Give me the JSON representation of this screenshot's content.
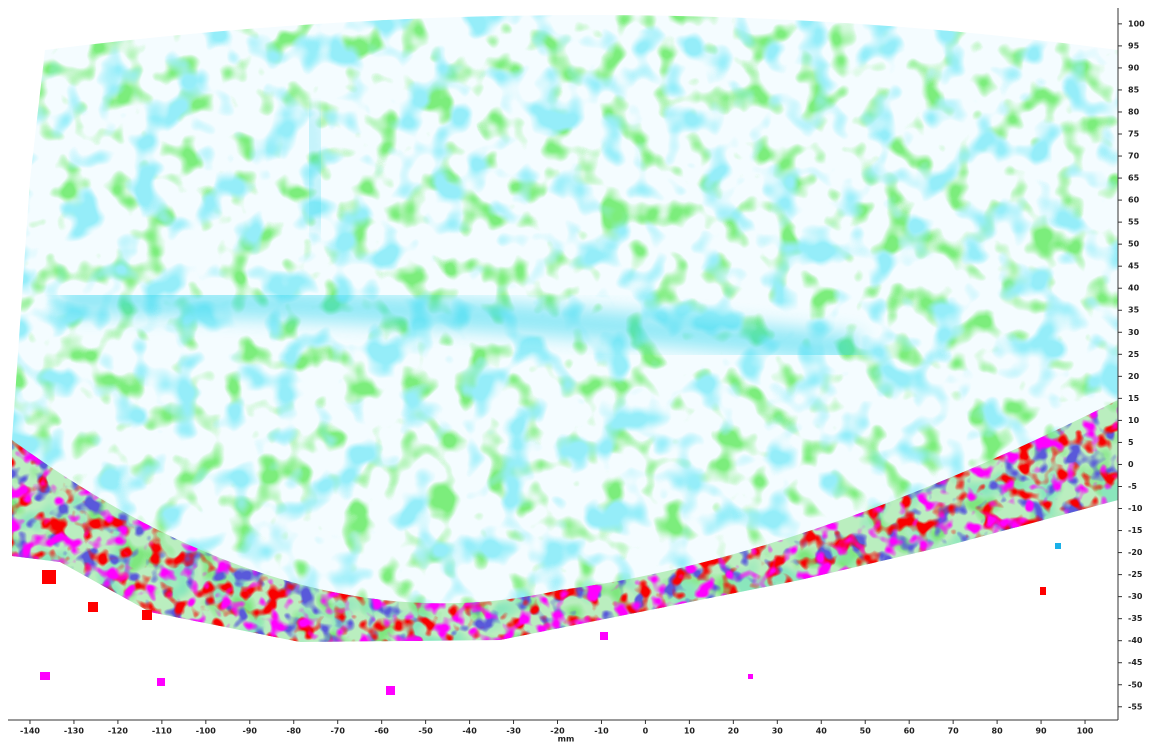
{
  "chart_data": {
    "type": "heatmap",
    "xlabel": "mm",
    "xlim": [
      -145,
      107.5
    ],
    "ylim": [
      -58,
      103.6
    ],
    "xticks": [
      -140,
      -130,
      -120,
      -110,
      -100,
      -90,
      -80,
      -70,
      -60,
      -50,
      -40,
      -30,
      -20,
      -10,
      0,
      10,
      20,
      30,
      40,
      50,
      60,
      70,
      80,
      90,
      100
    ],
    "yticks": [
      -55,
      -50,
      -45,
      -40,
      -35,
      -30,
      -25,
      -20,
      -15,
      -10,
      -5,
      0,
      5,
      10,
      15,
      20,
      25,
      30,
      35,
      40,
      45,
      50,
      55,
      60,
      65,
      70,
      75,
      80,
      85,
      90,
      95,
      100
    ]
  }
}
